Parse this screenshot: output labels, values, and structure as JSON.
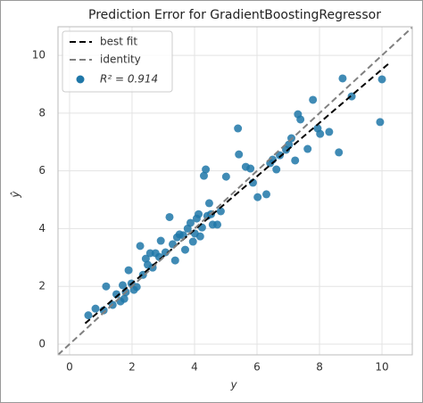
{
  "chart_data": {
    "type": "scatter",
    "title": "Prediction Error for GradientBoostingRegressor",
    "x_label": "y",
    "y_label": "ŷ",
    "xlim": [
      -0.37,
      10.97
    ],
    "ylim": [
      -0.37,
      10.99
    ],
    "xticks": [
      0,
      2,
      4,
      6,
      8,
      10
    ],
    "yticks": [
      0,
      2,
      4,
      6,
      8,
      10
    ],
    "grid": true,
    "legend": "upper left",
    "lines": [
      {
        "name": "best fit",
        "color": "#000000",
        "x": [
          0.5,
          10.2
        ],
        "values": [
          0.72,
          9.7
        ]
      },
      {
        "name": "identity",
        "color": "#808080",
        "x": [
          -0.37,
          10.97
        ],
        "values": [
          -0.37,
          10.97
        ]
      }
    ],
    "series": [
      {
        "name": "R² = 0.914",
        "color": "#1f77a8",
        "x": [
          0.6,
          0.83,
          1.09,
          1.17,
          1.38,
          1.5,
          1.63,
          1.7,
          1.75,
          1.8,
          1.89,
          1.98,
          2.06,
          2.15,
          2.26,
          2.35,
          2.44,
          2.5,
          2.58,
          2.66,
          2.75,
          2.87,
          2.92,
          3.07,
          3.2,
          3.3,
          3.38,
          3.44,
          3.52,
          3.64,
          3.7,
          3.78,
          3.87,
          3.95,
          4.01,
          4.07,
          4.13,
          4.18,
          4.24,
          4.3,
          4.36,
          4.41,
          4.47,
          4.53,
          4.58,
          4.73,
          4.84,
          5.01,
          5.39,
          5.42,
          5.64,
          5.79,
          5.87,
          6.02,
          6.3,
          6.42,
          6.5,
          6.62,
          6.73,
          6.93,
          7.02,
          7.1,
          7.22,
          7.31,
          7.39,
          7.62,
          7.79,
          7.94,
          8.02,
          8.31,
          8.62,
          8.74,
          9.03,
          9.94,
          10.0
        ],
        "values": [
          1.0,
          1.23,
          1.17,
          2.0,
          1.36,
          1.73,
          1.48,
          2.04,
          1.57,
          1.8,
          2.56,
          2.1,
          1.88,
          1.98,
          3.4,
          2.4,
          2.96,
          2.75,
          3.15,
          2.65,
          3.15,
          3.02,
          3.58,
          3.18,
          4.4,
          3.46,
          2.9,
          3.7,
          3.8,
          3.77,
          3.27,
          4.0,
          4.2,
          3.55,
          3.83,
          4.35,
          4.5,
          3.73,
          4.04,
          5.83,
          6.05,
          4.44,
          4.88,
          4.5,
          4.14,
          4.14,
          4.6,
          5.8,
          7.47,
          6.57,
          6.14,
          6.08,
          5.59,
          5.09,
          5.19,
          6.27,
          6.39,
          6.05,
          6.54,
          6.73,
          6.91,
          7.13,
          6.36,
          7.96,
          7.78,
          6.76,
          8.46,
          7.47,
          7.28,
          7.35,
          6.64,
          9.2,
          8.58,
          7.69,
          9.17
        ]
      }
    ]
  }
}
